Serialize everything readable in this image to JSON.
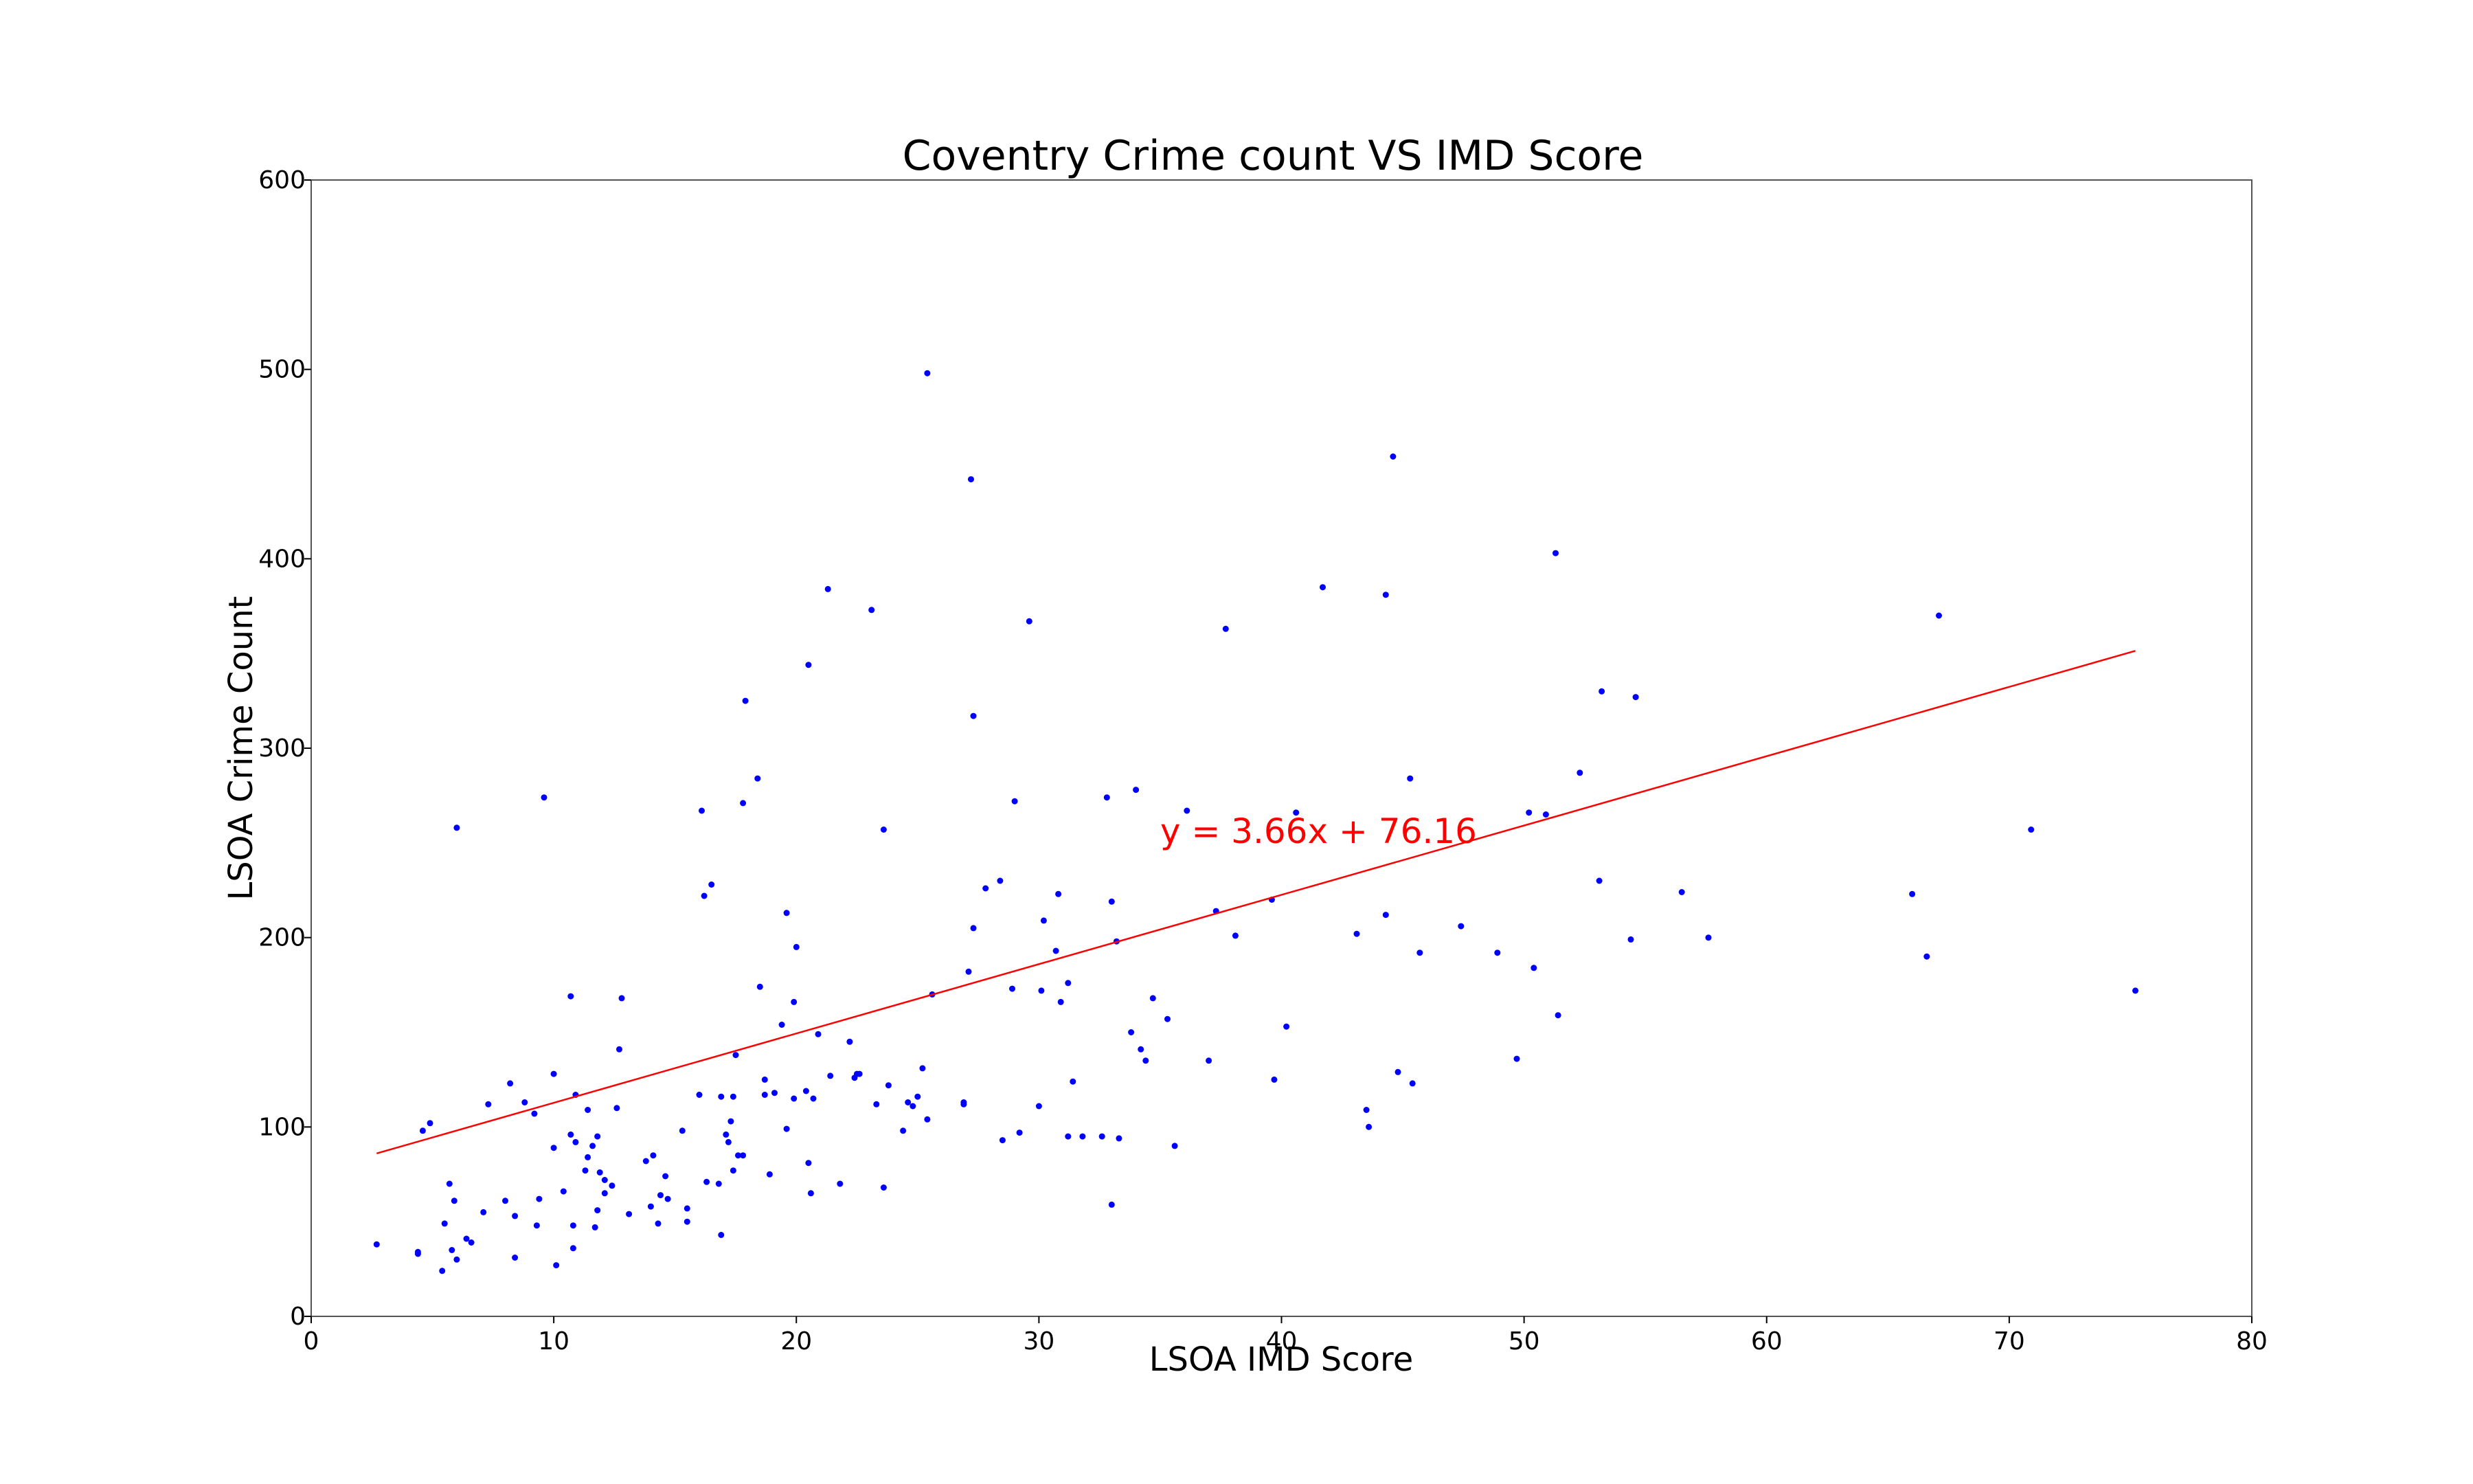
{
  "chart_data": {
    "type": "scatter",
    "title": "Coventry Crime count VS IMD Score",
    "xlabel": "LSOA IMD Score",
    "ylabel": "LSOA Crime Count",
    "xlim": [
      0,
      80
    ],
    "ylim": [
      0,
      600
    ],
    "xticks": [
      "0",
      "10",
      "20",
      "30",
      "40",
      "50",
      "60",
      "70",
      "80"
    ],
    "yticks": [
      "0",
      "100",
      "200",
      "300",
      "400",
      "500",
      "600"
    ],
    "grid": false,
    "point_color": "#0000ff",
    "trendline": {
      "equation": "y = 3.66x + 76.16",
      "slope": 3.66,
      "intercept": 76.16,
      "x_start": 2.7,
      "x_end": 75.2,
      "color": "#ff0000",
      "label_x": 35,
      "label_y": 250
    },
    "points": [
      [
        2.7,
        38
      ],
      [
        4.4,
        34
      ],
      [
        4.4,
        33
      ],
      [
        4.6,
        98
      ],
      [
        4.9,
        102
      ],
      [
        5.4,
        24
      ],
      [
        5.5,
        49
      ],
      [
        5.7,
        70
      ],
      [
        5.8,
        35
      ],
      [
        5.9,
        61
      ],
      [
        6.0,
        30
      ],
      [
        6.0,
        258
      ],
      [
        6.4,
        41
      ],
      [
        6.6,
        39
      ],
      [
        7.1,
        55
      ],
      [
        7.3,
        112
      ],
      [
        8.0,
        61
      ],
      [
        8.2,
        123
      ],
      [
        8.4,
        53
      ],
      [
        8.4,
        31
      ],
      [
        8.8,
        113
      ],
      [
        9.2,
        107
      ],
      [
        9.3,
        48
      ],
      [
        9.4,
        62
      ],
      [
        9.6,
        274
      ],
      [
        10.0,
        128
      ],
      [
        10.0,
        89
      ],
      [
        10.1,
        27
      ],
      [
        10.4,
        66
      ],
      [
        10.7,
        169
      ],
      [
        10.7,
        96
      ],
      [
        10.8,
        36
      ],
      [
        10.8,
        48
      ],
      [
        10.9,
        117
      ],
      [
        10.9,
        92
      ],
      [
        11.3,
        77
      ],
      [
        11.4,
        109
      ],
      [
        11.4,
        84
      ],
      [
        11.6,
        90
      ],
      [
        11.7,
        47
      ],
      [
        11.8,
        95
      ],
      [
        11.8,
        56
      ],
      [
        11.9,
        76
      ],
      [
        12.1,
        65
      ],
      [
        12.1,
        72
      ],
      [
        12.4,
        69
      ],
      [
        12.6,
        110
      ],
      [
        12.7,
        141
      ],
      [
        12.8,
        168
      ],
      [
        13.1,
        54
      ],
      [
        13.8,
        82
      ],
      [
        14.0,
        58
      ],
      [
        14.1,
        85
      ],
      [
        14.3,
        49
      ],
      [
        14.4,
        64
      ],
      [
        14.6,
        74
      ],
      [
        14.7,
        62
      ],
      [
        15.3,
        98
      ],
      [
        15.5,
        50
      ],
      [
        15.5,
        57
      ],
      [
        16.0,
        117
      ],
      [
        16.1,
        267
      ],
      [
        16.2,
        222
      ],
      [
        16.3,
        71
      ],
      [
        16.5,
        228
      ],
      [
        16.8,
        70
      ],
      [
        16.9,
        116
      ],
      [
        16.9,
        43
      ],
      [
        17.1,
        96
      ],
      [
        17.2,
        92
      ],
      [
        17.3,
        103
      ],
      [
        17.4,
        77
      ],
      [
        17.4,
        116
      ],
      [
        17.5,
        138
      ],
      [
        17.6,
        85
      ],
      [
        17.8,
        85
      ],
      [
        17.8,
        271
      ],
      [
        17.9,
        325
      ],
      [
        18.4,
        284
      ],
      [
        18.5,
        174
      ],
      [
        18.7,
        117
      ],
      [
        18.7,
        125
      ],
      [
        18.9,
        75
      ],
      [
        19.1,
        118
      ],
      [
        19.4,
        154
      ],
      [
        19.6,
        213
      ],
      [
        19.6,
        99
      ],
      [
        19.9,
        115
      ],
      [
        19.9,
        166
      ],
      [
        20.0,
        195
      ],
      [
        20.4,
        119
      ],
      [
        20.5,
        81
      ],
      [
        20.5,
        344
      ],
      [
        20.6,
        65
      ],
      [
        20.7,
        115
      ],
      [
        20.9,
        149
      ],
      [
        21.3,
        384
      ],
      [
        21.4,
        127
      ],
      [
        21.8,
        70
      ],
      [
        22.2,
        145
      ],
      [
        22.4,
        126
      ],
      [
        22.5,
        128
      ],
      [
        22.6,
        128
      ],
      [
        23.1,
        373
      ],
      [
        23.3,
        112
      ],
      [
        23.6,
        68
      ],
      [
        23.6,
        257
      ],
      [
        23.8,
        122
      ],
      [
        24.4,
        98
      ],
      [
        24.6,
        113
      ],
      [
        24.8,
        111
      ],
      [
        25.0,
        116
      ],
      [
        25.2,
        131
      ],
      [
        25.4,
        104
      ],
      [
        25.4,
        498
      ],
      [
        25.6,
        170
      ],
      [
        26.9,
        112
      ],
      [
        26.9,
        113
      ],
      [
        27.1,
        182
      ],
      [
        27.2,
        442
      ],
      [
        27.3,
        205
      ],
      [
        27.3,
        317
      ],
      [
        27.8,
        226
      ],
      [
        28.4,
        230
      ],
      [
        28.5,
        93
      ],
      [
        28.9,
        173
      ],
      [
        29.0,
        272
      ],
      [
        29.2,
        97
      ],
      [
        29.6,
        367
      ],
      [
        30.0,
        111
      ],
      [
        30.1,
        172
      ],
      [
        30.2,
        209
      ],
      [
        30.7,
        193
      ],
      [
        30.8,
        223
      ],
      [
        30.9,
        166
      ],
      [
        31.2,
        176
      ],
      [
        31.2,
        95
      ],
      [
        31.4,
        124
      ],
      [
        31.8,
        95
      ],
      [
        32.6,
        95
      ],
      [
        32.8,
        274
      ],
      [
        33.0,
        219
      ],
      [
        33.0,
        59
      ],
      [
        33.2,
        198
      ],
      [
        33.3,
        94
      ],
      [
        33.8,
        150
      ],
      [
        34.0,
        278
      ],
      [
        34.2,
        141
      ],
      [
        34.4,
        135
      ],
      [
        34.7,
        168
      ],
      [
        35.3,
        157
      ],
      [
        35.6,
        90
      ],
      [
        36.1,
        267
      ],
      [
        37.0,
        135
      ],
      [
        37.3,
        214
      ],
      [
        37.7,
        363
      ],
      [
        38.1,
        201
      ],
      [
        39.6,
        220
      ],
      [
        39.7,
        125
      ],
      [
        40.2,
        153
      ],
      [
        40.6,
        266
      ],
      [
        41.7,
        385
      ],
      [
        43.1,
        202
      ],
      [
        43.5,
        109
      ],
      [
        43.6,
        100
      ],
      [
        44.3,
        212
      ],
      [
        44.3,
        381
      ],
      [
        44.6,
        454
      ],
      [
        44.8,
        129
      ],
      [
        45.3,
        284
      ],
      [
        45.4,
        123
      ],
      [
        45.7,
        192
      ],
      [
        47.4,
        206
      ],
      [
        48.9,
        192
      ],
      [
        49.7,
        136
      ],
      [
        50.2,
        266
      ],
      [
        50.4,
        184
      ],
      [
        50.9,
        265
      ],
      [
        51.3,
        403
      ],
      [
        51.4,
        159
      ],
      [
        52.3,
        287
      ],
      [
        53.1,
        230
      ],
      [
        53.2,
        330
      ],
      [
        54.4,
        199
      ],
      [
        54.6,
        327
      ],
      [
        56.5,
        224
      ],
      [
        57.6,
        200
      ],
      [
        66.0,
        223
      ],
      [
        66.6,
        190
      ],
      [
        67.1,
        370
      ],
      [
        70.9,
        257
      ],
      [
        75.2,
        172
      ]
    ]
  }
}
